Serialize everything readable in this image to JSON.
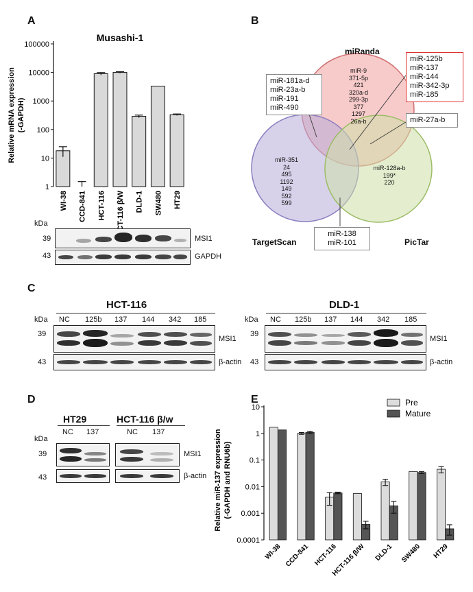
{
  "panels": {
    "A": "A",
    "B": "B",
    "C": "C",
    "D": "D",
    "E": "E"
  },
  "panelA": {
    "chart_data": {
      "type": "bar",
      "title": "Musashi-1",
      "ylabel_line1": "Relative mRNA expression",
      "ylabel_line2": "(-GAPDH)",
      "yscale": "log",
      "ylim": [
        1,
        100000
      ],
      "yticks": [
        "1",
        "10",
        "100",
        "1000",
        "10000",
        "100000"
      ],
      "categories": [
        "WI-38",
        "CCD-841",
        "HCT-116",
        "HCT-116 β/W",
        "DLD-1",
        "SW480",
        "HT29"
      ],
      "values": [
        18,
        1,
        9000,
        10000,
        290,
        3300,
        330
      ],
      "errors": [
        7,
        0.5,
        900,
        600,
        30,
        0,
        20
      ]
    },
    "blot": {
      "kda": "kDa",
      "markers": [
        "39",
        "43"
      ],
      "labels": [
        "MSI1",
        "GAPDH"
      ]
    }
  },
  "panelB": {
    "sets": [
      "miRanda",
      "TargetScan",
      "PicTar"
    ],
    "miRanda_only": [
      "miR-9",
      "371-5p",
      "421",
      "320a-d",
      "299-3p",
      "377",
      "1297",
      "26a-b"
    ],
    "targetscan_only": [
      "miR-351",
      "24",
      "495",
      "1192",
      "149",
      "592",
      "599"
    ],
    "pictar_only": [
      "miR-128a-b",
      "199*",
      "220"
    ],
    "callout_miranda_targetscan": [
      "miR-181a-d",
      "miR-23a-b",
      "miR-191",
      "miR-490"
    ],
    "callout_all_three": [
      "miR-125b",
      "miR-137",
      "miR-144",
      "miR-342-3p",
      "miR-185"
    ],
    "callout_miranda_pictar": [
      "miR-27a-b"
    ],
    "callout_targetscan_pictar": [
      "miR-138",
      "miR-101"
    ],
    "colors": {
      "miRanda": "#f2a0a0",
      "TargetScan": "#b6acd8",
      "PicTar": "#cde0a8",
      "highlight": "#e03030"
    }
  },
  "panelC": {
    "left": {
      "title": "HCT-116",
      "kda": "kDa",
      "lanes": [
        "NC",
        "125b",
        "137",
        "144",
        "342",
        "185"
      ],
      "markers": [
        "39",
        "43"
      ],
      "labels": [
        "MSI1",
        "β-actin"
      ]
    },
    "right": {
      "title": "DLD-1",
      "kda": "kDa",
      "lanes": [
        "NC",
        "125b",
        "137",
        "144",
        "342",
        "185"
      ],
      "markers": [
        "39",
        "43"
      ],
      "labels": [
        "MSI1",
        "β-actin"
      ]
    }
  },
  "panelD": {
    "left": {
      "title": "HT29",
      "lanes": [
        "NC",
        "137"
      ]
    },
    "right": {
      "title": "HCT-116 β/w",
      "lanes": [
        "NC",
        "137"
      ]
    },
    "kda": "kDa",
    "markers": [
      "39",
      "43"
    ],
    "labels": [
      "MSI1",
      "β-actin"
    ]
  },
  "panelE": {
    "chart_data": {
      "type": "bar",
      "ylabel_line1": "Relative miR-137 expression",
      "ylabel_line2": "(-GAPDH and RNU6b)",
      "yscale": "log",
      "ylim": [
        0.0001,
        10
      ],
      "yticks": [
        "0.0001",
        "0.001",
        "0.01",
        "0.1",
        "1",
        "10"
      ],
      "categories": [
        "WI-38",
        "CCD-841",
        "HCT-116",
        "HCT-116 β/W",
        "DLD-1",
        "SW480",
        "HT29"
      ],
      "series": [
        {
          "name": "Pre",
          "color": "#dcdcdc",
          "values": [
            1.7,
            1.0,
            0.004,
            0.0055,
            0.015,
            0.037,
            0.045
          ],
          "err_lo": [
            0,
            0.08,
            0.002,
            0,
            0.004,
            0,
            0.012
          ],
          "err_hi": [
            0,
            0.08,
            0.002,
            0,
            0.004,
            0,
            0.012
          ]
        },
        {
          "name": "Mature",
          "color": "#555555",
          "values": [
            1.35,
            1.1,
            0.0058,
            0.00038,
            0.0019,
            0.034,
            0.00026
          ],
          "err_lo": [
            0,
            0.1,
            0.0004,
            0.00012,
            0.0009,
            0.003,
            0.00011
          ],
          "err_hi": [
            0,
            0.1,
            0.0004,
            0.00012,
            0.0009,
            0.003,
            0.00011
          ]
        }
      ],
      "legend": "top-right"
    }
  }
}
